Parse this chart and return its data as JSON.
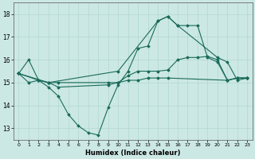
{
  "xlabel": "Humidex (Indice chaleur)",
  "bg_color": "#cce8e4",
  "grid_color": "#b0d8d0",
  "line_color": "#1a6b5a",
  "xlim": [
    -0.5,
    23.5
  ],
  "ylim": [
    12.5,
    18.5
  ],
  "yticks": [
    13,
    14,
    15,
    16,
    17,
    18
  ],
  "xticks": [
    0,
    1,
    2,
    3,
    4,
    5,
    6,
    7,
    8,
    9,
    10,
    11,
    12,
    13,
    14,
    15,
    16,
    17,
    18,
    19,
    20,
    21,
    22,
    23
  ],
  "line1_x": [
    0,
    1,
    2,
    3,
    4,
    5,
    6,
    7,
    8,
    9,
    10,
    11,
    12,
    13,
    14,
    15,
    16,
    20,
    21,
    22,
    23
  ],
  "line1_y": [
    15.4,
    16.0,
    15.1,
    14.8,
    14.4,
    13.6,
    13.1,
    12.8,
    12.7,
    13.9,
    14.9,
    15.5,
    16.5,
    16.6,
    17.7,
    17.9,
    17.5,
    16.1,
    15.9,
    15.1,
    15.2
  ],
  "line2_x": [
    0,
    1,
    2,
    3,
    4,
    9,
    10,
    11,
    12,
    13,
    14,
    15,
    16,
    17,
    18,
    19,
    20,
    21,
    22,
    23
  ],
  "line2_y": [
    15.4,
    15.0,
    15.1,
    15.0,
    14.8,
    14.9,
    15.0,
    15.3,
    15.5,
    15.5,
    15.5,
    15.55,
    16.0,
    16.1,
    16.1,
    16.15,
    16.0,
    15.1,
    15.2,
    15.2
  ],
  "line3_x": [
    0,
    2,
    3,
    4,
    9,
    10,
    11,
    12,
    13,
    14,
    15,
    21,
    22,
    23
  ],
  "line3_y": [
    15.4,
    15.1,
    15.0,
    15.0,
    15.0,
    15.0,
    15.1,
    15.1,
    15.2,
    15.2,
    15.2,
    15.1,
    15.2,
    15.2
  ],
  "line4_x": [
    0,
    3,
    10,
    14,
    15,
    16,
    17,
    18,
    19,
    20,
    21,
    22,
    23
  ],
  "line4_y": [
    15.4,
    15.0,
    15.5,
    17.7,
    17.9,
    17.5,
    17.5,
    17.5,
    16.1,
    15.9,
    15.1,
    15.2,
    15.2
  ]
}
